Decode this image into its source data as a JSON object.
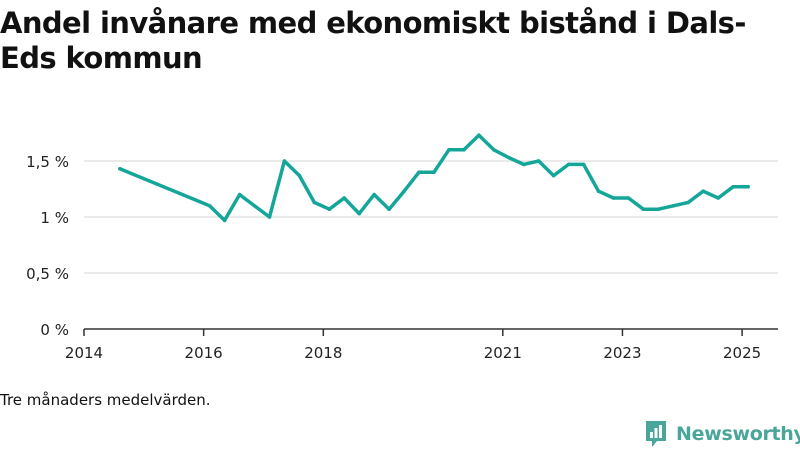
{
  "title": "Andel invånare med ekonomiskt bistånd i Dals-Eds kommun",
  "caption": "Tre månaders medelvärden.",
  "brand": {
    "name": "Newsworthy",
    "color": "#4aa59a"
  },
  "colors": {
    "line": "#14a699",
    "grid": "#dddddd",
    "axis": "#333333"
  },
  "chart_data": {
    "type": "line",
    "title": "Andel invånare med ekonomiskt bistånd i Dals-Eds kommun",
    "xlabel": "",
    "ylabel": "",
    "xlim": [
      2014.0,
      2025.6
    ],
    "ylim": [
      0,
      1.75
    ],
    "x_ticks": [
      {
        "value": 2014,
        "label": "2014"
      },
      {
        "value": 2016,
        "label": "2016"
      },
      {
        "value": 2018,
        "label": "2018"
      },
      {
        "value": 2021,
        "label": "2021"
      },
      {
        "value": 2023,
        "label": "2023"
      },
      {
        "value": 2025,
        "label": "2025"
      }
    ],
    "y_ticks": [
      {
        "value": 0,
        "label": "0 %"
      },
      {
        "value": 0.5,
        "label": "0,5 %"
      },
      {
        "value": 1,
        "label": "1 %"
      },
      {
        "value": 1.5,
        "label": "1,5 %"
      }
    ],
    "grid": true,
    "legend": "none",
    "series": [
      {
        "x": [
          2014.6,
          2016.1,
          2016.35,
          2016.6,
          2017.1,
          2017.35,
          2017.6,
          2017.85,
          2018.1,
          2018.35,
          2018.6,
          2018.85,
          2019.1,
          2019.35,
          2019.6,
          2019.85,
          2020.1,
          2020.35,
          2020.6,
          2020.85,
          2021.1,
          2021.35,
          2021.6,
          2021.85,
          2022.1,
          2022.35,
          2022.6,
          2022.85,
          2023.1,
          2023.35,
          2023.6,
          2023.85,
          2024.1,
          2024.35,
          2024.6,
          2024.85,
          2025.1
        ],
        "y": [
          1.43,
          1.1,
          0.97,
          1.2,
          1.0,
          1.5,
          1.37,
          1.13,
          1.07,
          1.17,
          1.03,
          1.2,
          1.07,
          1.23,
          1.4,
          1.4,
          1.6,
          1.6,
          1.73,
          1.6,
          1.53,
          1.47,
          1.5,
          1.37,
          1.47,
          1.47,
          1.23,
          1.17,
          1.17,
          1.07,
          1.07,
          1.1,
          1.13,
          1.23,
          1.17,
          1.27,
          1.27
        ]
      }
    ]
  }
}
